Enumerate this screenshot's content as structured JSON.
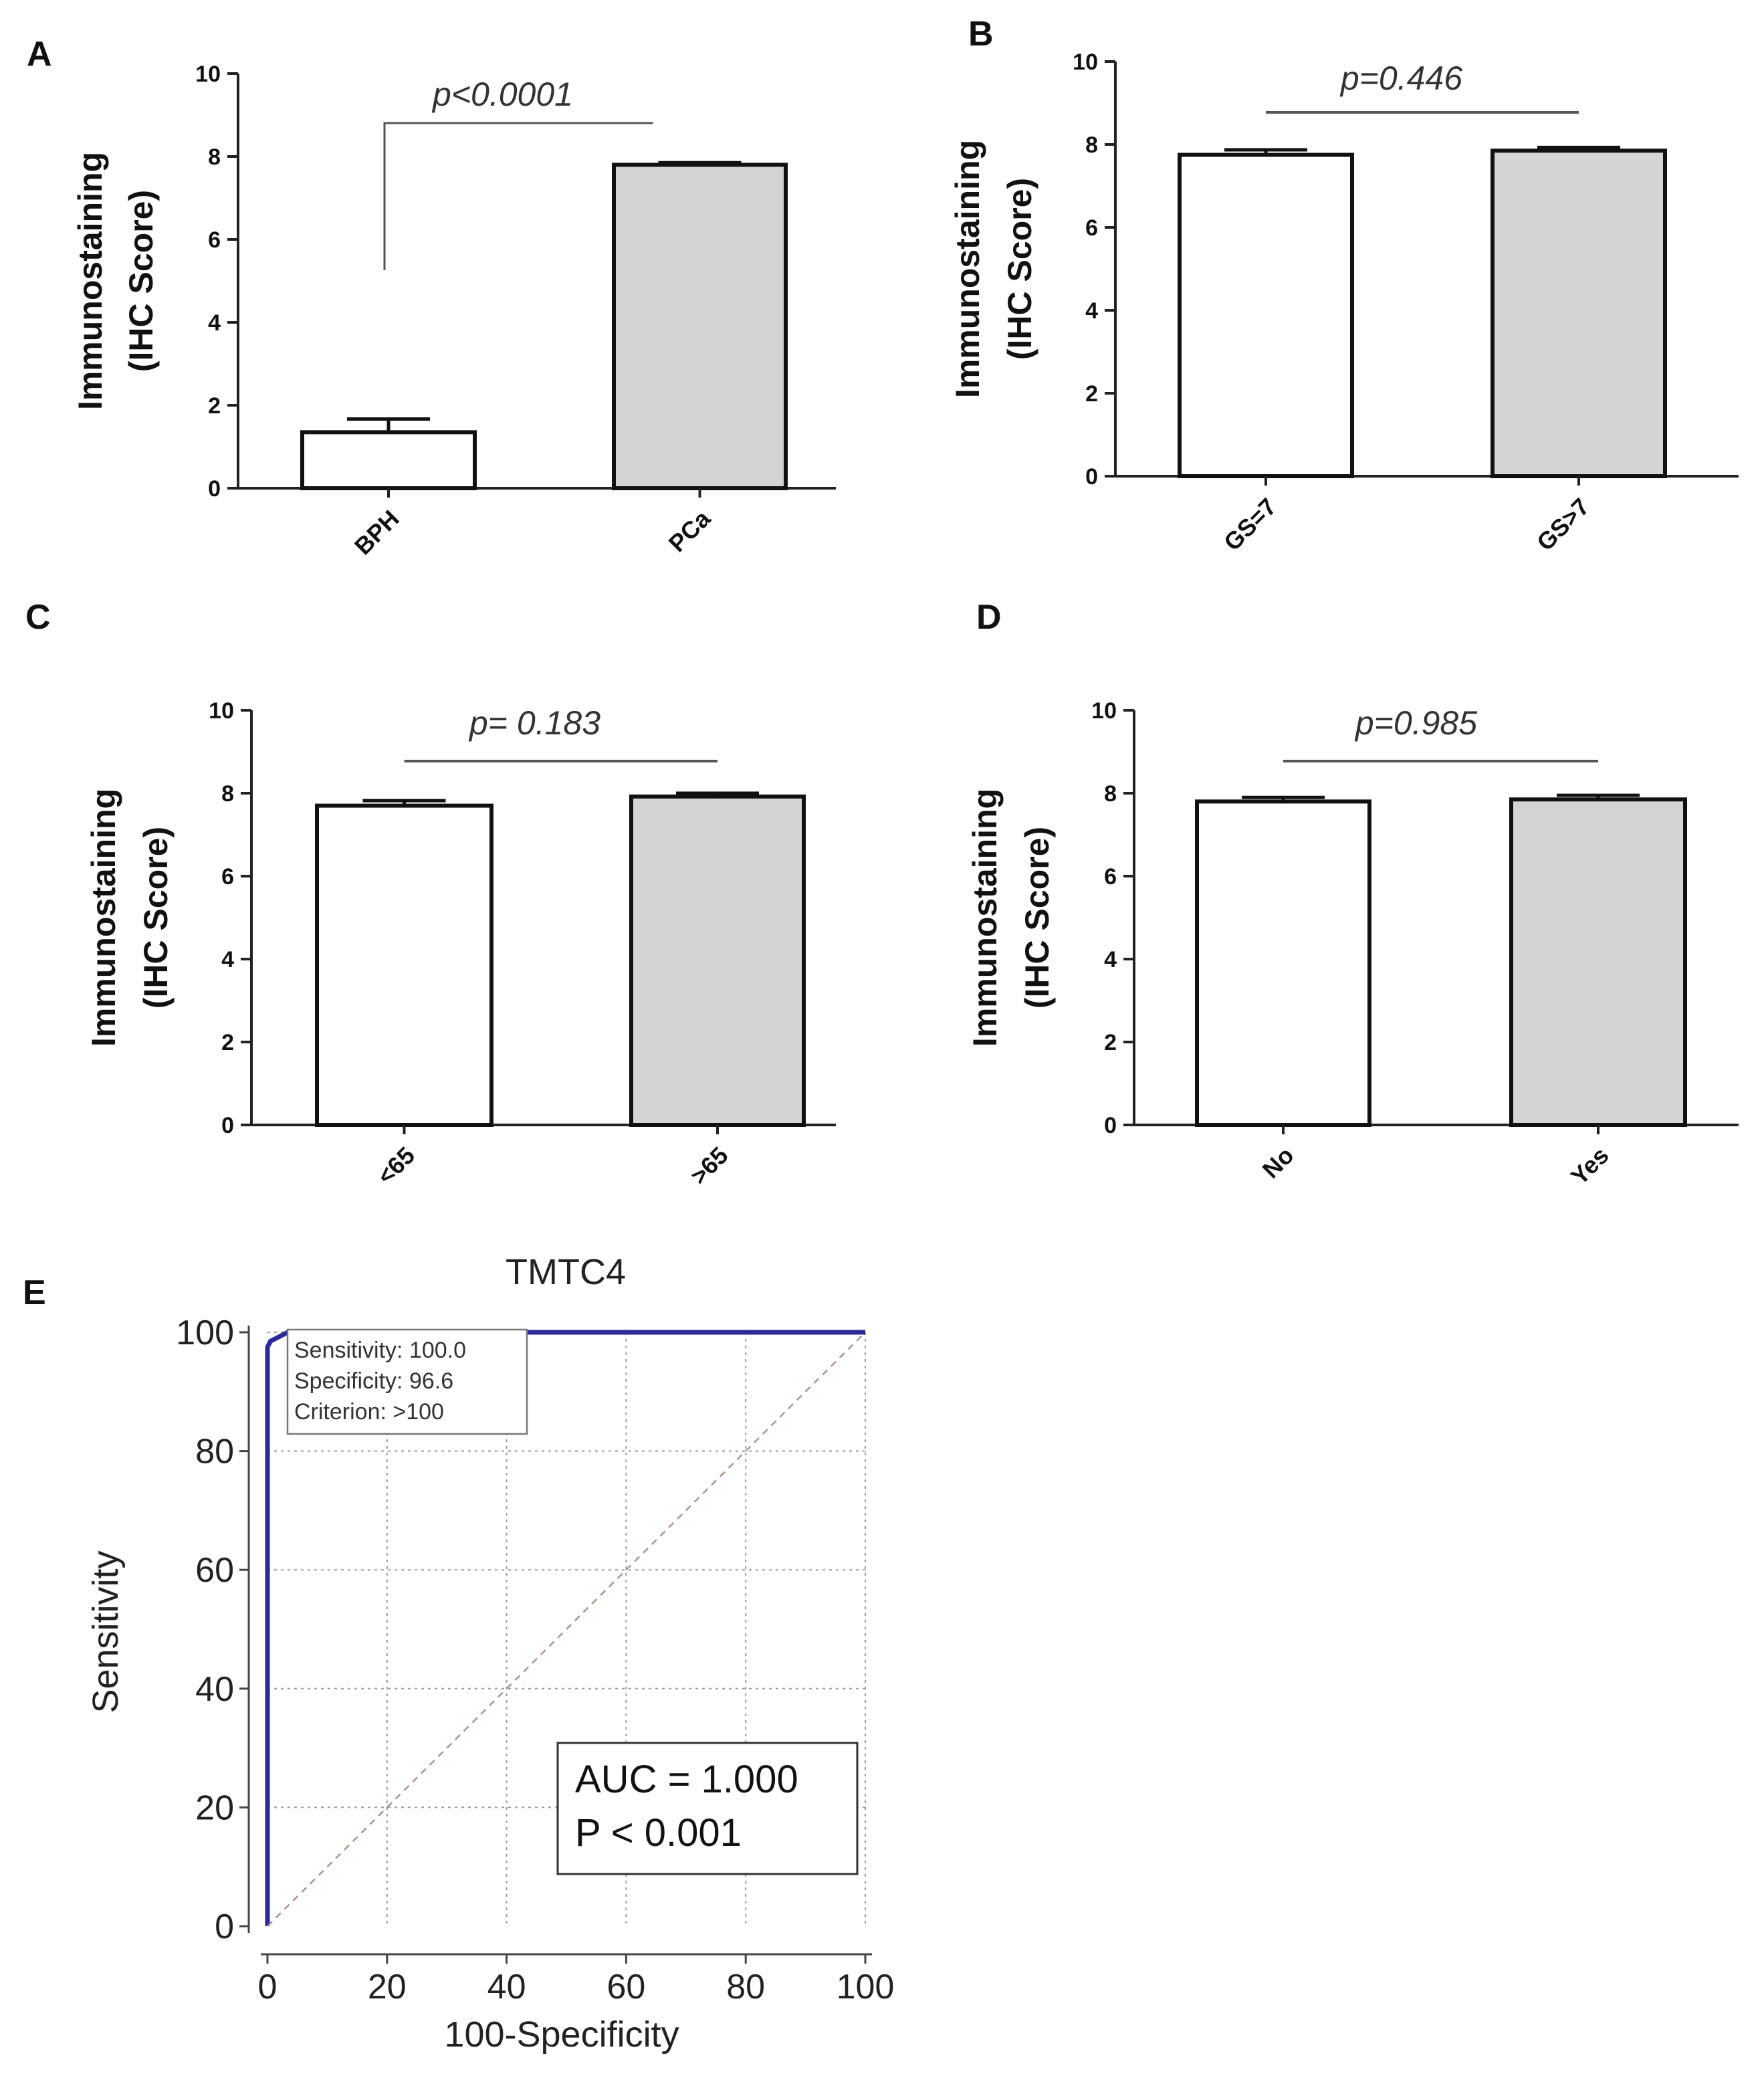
{
  "chart_data": [
    {
      "panel": "A",
      "type": "bar",
      "categories": [
        "BPH",
        "PCa"
      ],
      "values": [
        1.35,
        7.8
      ],
      "errors": [
        0.32,
        0.05
      ],
      "bar_colors": [
        "#ffffff",
        "#d4d4d4"
      ],
      "ylabel_line1": "Immunostaining",
      "ylabel_line2": "(IHC Score)",
      "ylim": [
        0,
        10
      ],
      "yticks": [
        0,
        2,
        4,
        6,
        8,
        10
      ],
      "annotation": "p<0.0001",
      "bracket_style": "left-drop"
    },
    {
      "panel": "B",
      "type": "bar",
      "categories": [
        "GS=7",
        "GS>7"
      ],
      "values": [
        7.75,
        7.85
      ],
      "errors": [
        0.12,
        0.08
      ],
      "bar_colors": [
        "#ffffff",
        "#d4d4d4"
      ],
      "ylabel_line1": "Immunostaining",
      "ylabel_line2": "(IHC Score)",
      "ylim": [
        0,
        10
      ],
      "yticks": [
        0,
        2,
        4,
        6,
        8,
        10
      ],
      "annotation": "p=0.446",
      "bracket_style": "line"
    },
    {
      "panel": "C",
      "type": "bar",
      "categories": [
        "<65",
        ">65"
      ],
      "values": [
        7.7,
        7.92
      ],
      "errors": [
        0.12,
        0.08
      ],
      "bar_colors": [
        "#ffffff",
        "#d4d4d4"
      ],
      "ylabel_line1": "Immunostaining",
      "ylabel_line2": "(IHC Score)",
      "ylim": [
        0,
        10
      ],
      "yticks": [
        0,
        2,
        4,
        6,
        8,
        10
      ],
      "annotation": "p= 0.183",
      "bracket_style": "line"
    },
    {
      "panel": "D",
      "type": "bar",
      "categories": [
        "No",
        "Yes"
      ],
      "values": [
        7.8,
        7.85
      ],
      "errors": [
        0.1,
        0.1
      ],
      "bar_colors": [
        "#ffffff",
        "#d4d4d4"
      ],
      "ylabel_line1": "Immunostaining",
      "ylabel_line2": "(IHC Score)",
      "ylim": [
        0,
        10
      ],
      "yticks": [
        0,
        2,
        4,
        6,
        8,
        10
      ],
      "annotation": "p=0.985",
      "bracket_style": "line"
    },
    {
      "panel": "E",
      "type": "line",
      "title": "TMTC4",
      "xlabel": "100-Specificity",
      "ylabel": "Sensitivity",
      "xlim": [
        0,
        100
      ],
      "ylim": [
        0,
        100
      ],
      "xticks": [
        0,
        20,
        40,
        60,
        80,
        100
      ],
      "yticks": [
        0,
        20,
        40,
        60,
        80,
        100
      ],
      "grid": true,
      "series": [
        {
          "color": "#2a2a9a",
          "x": [
            0,
            0,
            0,
            0.5,
            3.4,
            100
          ],
          "y": [
            0,
            20,
            97.5,
            98.5,
            100,
            100
          ]
        },
        {
          "color": "#b09090",
          "style": "dashed",
          "x": [
            0,
            100
          ],
          "y": [
            0,
            100
          ]
        }
      ],
      "info_box": [
        "Sensitivity: 100.0",
        "Specificity: 96.6",
        "Criterion: >100"
      ],
      "result_box": [
        "AUC = 1.000",
        "P < 0.001"
      ]
    }
  ]
}
